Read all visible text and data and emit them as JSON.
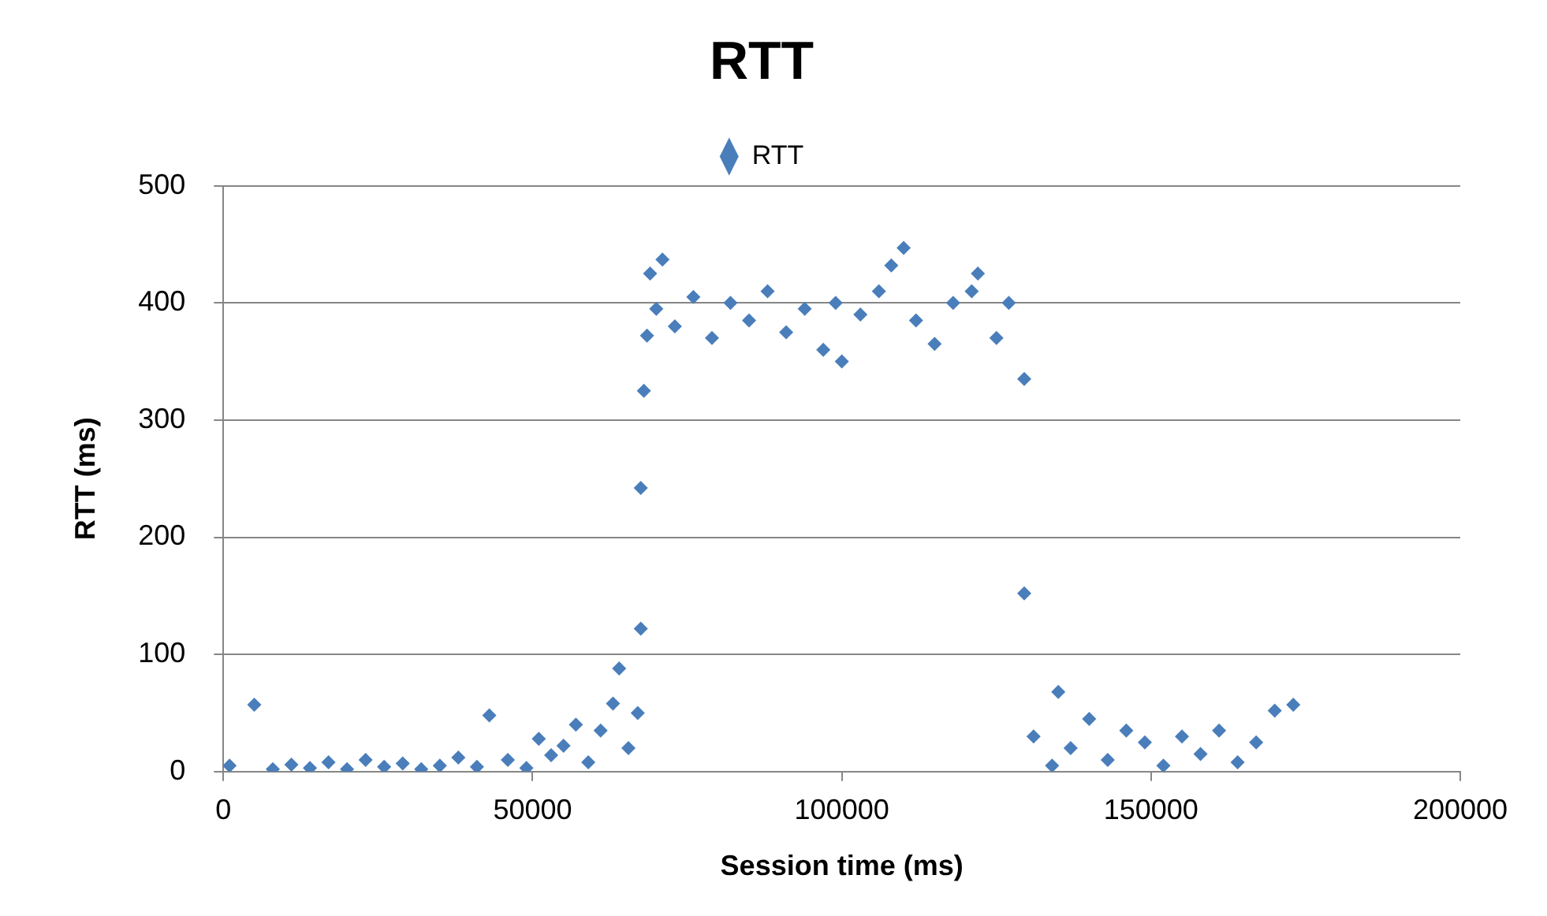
{
  "chart_data": {
    "type": "scatter",
    "title": "RTT",
    "xlabel": "Session time (ms)",
    "ylabel": "RTT (ms)",
    "xlim": [
      0,
      200000
    ],
    "xticks": [
      0,
      50000,
      100000,
      150000,
      200000
    ],
    "ylim": [
      0,
      500
    ],
    "yticks": [
      0,
      100,
      200,
      300,
      400,
      500
    ],
    "grid": "y",
    "legend": "top",
    "marker": "diamond",
    "series": [
      {
        "name": "RTT",
        "color": "#4a7ebb",
        "x": [
          1000,
          5000,
          8000,
          11000,
          14000,
          17000,
          20000,
          23000,
          26000,
          29000,
          32000,
          35000,
          38000,
          41000,
          43000,
          46000,
          49000,
          51000,
          53000,
          55000,
          57000,
          59000,
          61000,
          63000,
          64000,
          65500,
          67000,
          67500,
          67500,
          68000,
          68500,
          69000,
          70000,
          71000,
          73000,
          76000,
          79000,
          82000,
          85000,
          88000,
          91000,
          94000,
          97000,
          99000,
          100000,
          103000,
          106000,
          108000,
          110000,
          112000,
          115000,
          118000,
          121000,
          122000,
          125000,
          127000,
          129500,
          129500,
          131000,
          134000,
          135000,
          137000,
          140000,
          143000,
          146000,
          149000,
          152000,
          155000,
          158000,
          161000,
          164000,
          167000,
          170000,
          173000
        ],
        "values": [
          5,
          57,
          2,
          6,
          3,
          8,
          2,
          10,
          4,
          7,
          2,
          5,
          12,
          4,
          48,
          10,
          3,
          28,
          14,
          22,
          40,
          8,
          35,
          58,
          88,
          20,
          50,
          122,
          242,
          325,
          372,
          425,
          395,
          437,
          380,
          405,
          370,
          400,
          385,
          410,
          375,
          395,
          360,
          400,
          350,
          390,
          410,
          432,
          447,
          385,
          365,
          400,
          410,
          425,
          370,
          400,
          335,
          152,
          30,
          5,
          68,
          20,
          45,
          10,
          35,
          25,
          5,
          30,
          15,
          35,
          8,
          25,
          52,
          57
        ]
      }
    ]
  }
}
